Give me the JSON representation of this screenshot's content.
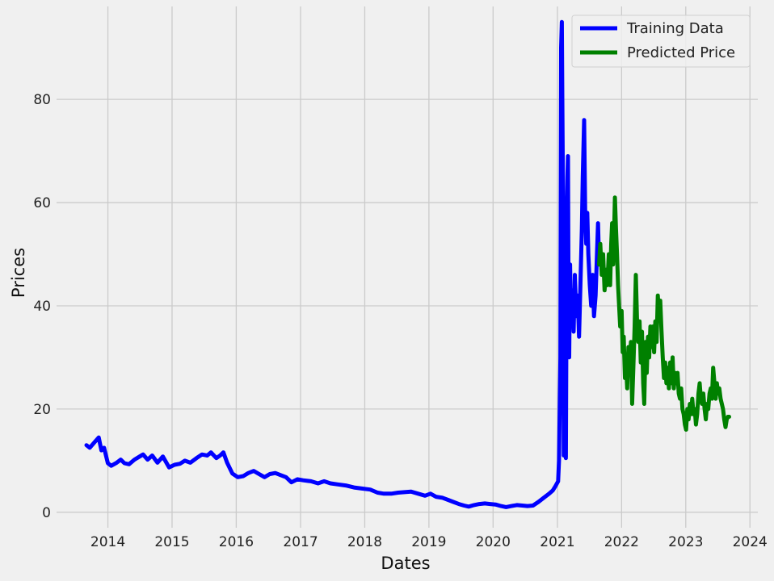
{
  "chart_data": {
    "type": "line",
    "title": "",
    "xlabel": "Dates",
    "ylabel": "Prices",
    "xlim": [
      "2013-03-15",
      "2024-02-15"
    ],
    "ylim": [
      -3,
      98
    ],
    "grid": true,
    "legend_position": "top-right",
    "x_ticks": [
      "2014",
      "2015",
      "2016",
      "2017",
      "2018",
      "2019",
      "2020",
      "2021",
      "2022",
      "2023",
      "2024"
    ],
    "y_ticks": [
      "0",
      "20",
      "40",
      "60",
      "80"
    ],
    "colors": {
      "background": "#f0f0f0",
      "grid": "#cbcbcb",
      "training": "#0000ff",
      "predicted": "#008000"
    },
    "series": [
      {
        "name": "Training Data",
        "color": "#0000ff",
        "points": [
          [
            "2013-09-01",
            13.0
          ],
          [
            "2013-09-20",
            12.5
          ],
          [
            "2013-10-15",
            13.5
          ],
          [
            "2013-11-10",
            14.5
          ],
          [
            "2013-11-25",
            12.0
          ],
          [
            "2013-12-10",
            12.5
          ],
          [
            "2014-01-01",
            9.5
          ],
          [
            "2014-01-20",
            9.0
          ],
          [
            "2014-02-20",
            9.6
          ],
          [
            "2014-03-15",
            10.2
          ],
          [
            "2014-04-05",
            9.5
          ],
          [
            "2014-05-01",
            9.3
          ],
          [
            "2014-06-01",
            10.2
          ],
          [
            "2014-07-01",
            10.8
          ],
          [
            "2014-07-20",
            11.2
          ],
          [
            "2014-08-15",
            10.2
          ],
          [
            "2014-09-10",
            11.0
          ],
          [
            "2014-10-10",
            9.6
          ],
          [
            "2014-11-10",
            10.8
          ],
          [
            "2014-12-15",
            8.7
          ],
          [
            "2015-01-15",
            9.2
          ],
          [
            "2015-02-15",
            9.4
          ],
          [
            "2015-03-15",
            10.0
          ],
          [
            "2015-04-15",
            9.6
          ],
          [
            "2015-05-20",
            10.5
          ],
          [
            "2015-06-20",
            11.2
          ],
          [
            "2015-07-20",
            11.0
          ],
          [
            "2015-08-10",
            11.6
          ],
          [
            "2015-09-10",
            10.5
          ],
          [
            "2015-10-01",
            11.0
          ],
          [
            "2015-10-20",
            11.6
          ],
          [
            "2015-11-10",
            9.6
          ],
          [
            "2015-12-10",
            7.5
          ],
          [
            "2016-01-10",
            6.8
          ],
          [
            "2016-02-10",
            7.0
          ],
          [
            "2016-03-10",
            7.6
          ],
          [
            "2016-04-10",
            8.0
          ],
          [
            "2016-05-10",
            7.4
          ],
          [
            "2016-06-10",
            6.8
          ],
          [
            "2016-07-10",
            7.4
          ],
          [
            "2016-08-10",
            7.6
          ],
          [
            "2016-09-10",
            7.2
          ],
          [
            "2016-10-10",
            6.8
          ],
          [
            "2016-11-10",
            5.8
          ],
          [
            "2016-12-15",
            6.4
          ],
          [
            "2017-01-15",
            6.2
          ],
          [
            "2017-03-01",
            6.0
          ],
          [
            "2017-04-10",
            5.6
          ],
          [
            "2017-05-15",
            6.0
          ],
          [
            "2017-06-20",
            5.6
          ],
          [
            "2017-08-01",
            5.4
          ],
          [
            "2017-09-15",
            5.2
          ],
          [
            "2017-11-01",
            4.8
          ],
          [
            "2017-12-15",
            4.6
          ],
          [
            "2018-02-01",
            4.4
          ],
          [
            "2018-03-15",
            3.8
          ],
          [
            "2018-04-20",
            3.6
          ],
          [
            "2018-06-01",
            3.6
          ],
          [
            "2018-07-10",
            3.8
          ],
          [
            "2018-08-15",
            3.9
          ],
          [
            "2018-09-20",
            4.0
          ],
          [
            "2018-11-01",
            3.6
          ],
          [
            "2018-12-10",
            3.2
          ],
          [
            "2019-01-10",
            3.6
          ],
          [
            "2019-02-10",
            3.0
          ],
          [
            "2019-03-20",
            2.8
          ],
          [
            "2019-04-20",
            2.4
          ],
          [
            "2019-05-20",
            2.0
          ],
          [
            "2019-06-20",
            1.6
          ],
          [
            "2019-07-20",
            1.3
          ],
          [
            "2019-08-15",
            1.1
          ],
          [
            "2019-09-15",
            1.4
          ],
          [
            "2019-10-15",
            1.6
          ],
          [
            "2019-11-15",
            1.7
          ],
          [
            "2019-12-15",
            1.6
          ],
          [
            "2020-01-15",
            1.5
          ],
          [
            "2020-02-15",
            1.2
          ],
          [
            "2020-03-15",
            1.0
          ],
          [
            "2020-04-15",
            1.2
          ],
          [
            "2020-05-15",
            1.4
          ],
          [
            "2020-06-15",
            1.3
          ],
          [
            "2020-07-15",
            1.2
          ],
          [
            "2020-08-15",
            1.3
          ],
          [
            "2020-09-15",
            2.0
          ],
          [
            "2020-10-15",
            2.8
          ],
          [
            "2020-11-15",
            3.6
          ],
          [
            "2020-12-05",
            4.2
          ],
          [
            "2020-12-20",
            5.0
          ],
          [
            "2021-01-05",
            6.0
          ],
          [
            "2021-01-10",
            10.0
          ],
          [
            "2021-01-18",
            30.0
          ],
          [
            "2021-01-22",
            90.0
          ],
          [
            "2021-01-26",
            95.0
          ],
          [
            "2021-01-29",
            80.0
          ],
          [
            "2021-02-03",
            55.0
          ],
          [
            "2021-02-06",
            11.0
          ],
          [
            "2021-02-12",
            42.0
          ],
          [
            "2021-02-18",
            10.5
          ],
          [
            "2021-02-24",
            60.0
          ],
          [
            "2021-02-27",
            65.0
          ],
          [
            "2021-03-02",
            69.0
          ],
          [
            "2021-03-05",
            45.0
          ],
          [
            "2021-03-09",
            30.0
          ],
          [
            "2021-03-14",
            48.0
          ],
          [
            "2021-03-19",
            36.0
          ],
          [
            "2021-03-26",
            43.0
          ],
          [
            "2021-04-03",
            35.0
          ],
          [
            "2021-04-10",
            46.0
          ],
          [
            "2021-04-18",
            38.0
          ],
          [
            "2021-04-26",
            42.0
          ],
          [
            "2021-05-04",
            34.0
          ],
          [
            "2021-05-12",
            44.0
          ],
          [
            "2021-05-20",
            55.0
          ],
          [
            "2021-05-25",
            65.0
          ],
          [
            "2021-06-02",
            76.0
          ],
          [
            "2021-06-08",
            58.0
          ],
          [
            "2021-06-14",
            52.0
          ],
          [
            "2021-06-20",
            58.0
          ],
          [
            "2021-06-26",
            50.0
          ],
          [
            "2021-07-04",
            44.0
          ],
          [
            "2021-07-12",
            40.0
          ],
          [
            "2021-07-20",
            46.0
          ],
          [
            "2021-07-28",
            38.0
          ],
          [
            "2021-08-06",
            42.0
          ],
          [
            "2021-08-14",
            50.0
          ],
          [
            "2021-08-20",
            56.0
          ],
          [
            "2021-08-26",
            48.0
          ]
        ]
      },
      {
        "name": "Predicted Price",
        "color": "#008000",
        "points": [
          [
            "2021-08-26",
            48.0
          ],
          [
            "2021-09-02",
            52.0
          ],
          [
            "2021-09-10",
            46.0
          ],
          [
            "2021-09-18",
            50.0
          ],
          [
            "2021-09-26",
            43.0
          ],
          [
            "2021-10-04",
            47.0
          ],
          [
            "2021-10-12",
            44.0
          ],
          [
            "2021-10-20",
            50.0
          ],
          [
            "2021-10-28",
            44.0
          ],
          [
            "2021-11-03",
            52.0
          ],
          [
            "2021-11-08",
            56.0
          ],
          [
            "2021-11-14",
            48.0
          ],
          [
            "2021-11-20",
            55.0
          ],
          [
            "2021-11-24",
            61.0
          ],
          [
            "2021-11-30",
            55.0
          ],
          [
            "2021-12-06",
            50.0
          ],
          [
            "2021-12-12",
            44.0
          ],
          [
            "2021-12-18",
            40.0
          ],
          [
            "2021-12-24",
            36.0
          ],
          [
            "2022-01-01",
            39.0
          ],
          [
            "2022-01-07",
            31.0
          ],
          [
            "2022-01-13",
            34.0
          ],
          [
            "2022-01-20",
            26.0
          ],
          [
            "2022-01-26",
            29.0
          ],
          [
            "2022-02-02",
            24.0
          ],
          [
            "2022-02-09",
            32.0
          ],
          [
            "2022-02-16",
            28.0
          ],
          [
            "2022-02-23",
            33.0
          ],
          [
            "2022-03-02",
            21.0
          ],
          [
            "2022-03-09",
            28.0
          ],
          [
            "2022-03-16",
            36.0
          ],
          [
            "2022-03-23",
            46.0
          ],
          [
            "2022-03-30",
            37.0
          ],
          [
            "2022-04-06",
            33.0
          ],
          [
            "2022-04-13",
            37.0
          ],
          [
            "2022-04-20",
            29.0
          ],
          [
            "2022-04-27",
            35.0
          ],
          [
            "2022-05-04",
            25.0
          ],
          [
            "2022-05-10",
            21.0
          ],
          [
            "2022-05-17",
            33.0
          ],
          [
            "2022-05-24",
            27.0
          ],
          [
            "2022-05-31",
            34.0
          ],
          [
            "2022-06-07",
            30.0
          ],
          [
            "2022-06-14",
            36.0
          ],
          [
            "2022-06-21",
            32.0
          ],
          [
            "2022-06-28",
            36.0
          ],
          [
            "2022-07-05",
            31.0
          ],
          [
            "2022-07-12",
            37.0
          ],
          [
            "2022-07-19",
            33.0
          ],
          [
            "2022-07-26",
            42.0
          ],
          [
            "2022-08-02",
            38.0
          ],
          [
            "2022-08-09",
            41.0
          ],
          [
            "2022-08-16",
            35.0
          ],
          [
            "2022-08-23",
            30.0
          ],
          [
            "2022-08-30",
            26.0
          ],
          [
            "2022-09-06",
            29.0
          ],
          [
            "2022-09-13",
            25.0
          ],
          [
            "2022-09-20",
            28.0
          ],
          [
            "2022-09-27",
            24.0
          ],
          [
            "2022-10-04",
            29.0
          ],
          [
            "2022-10-11",
            25.0
          ],
          [
            "2022-10-18",
            30.0
          ],
          [
            "2022-10-25",
            24.0
          ],
          [
            "2022-11-01",
            27.0
          ],
          [
            "2022-11-08",
            25.0
          ],
          [
            "2022-11-15",
            27.0
          ],
          [
            "2022-11-22",
            23.0
          ],
          [
            "2022-11-29",
            22.0
          ],
          [
            "2022-12-06",
            24.0
          ],
          [
            "2022-12-13",
            20.0
          ],
          [
            "2022-12-20",
            19.0
          ],
          [
            "2022-12-27",
            17.0
          ],
          [
            "2023-01-03",
            16.0
          ],
          [
            "2023-01-10",
            20.0
          ],
          [
            "2023-01-17",
            18.0
          ],
          [
            "2023-01-24",
            21.0
          ],
          [
            "2023-01-31",
            19.0
          ],
          [
            "2023-02-07",
            22.0
          ],
          [
            "2023-02-14",
            19.0
          ],
          [
            "2023-02-21",
            20.0
          ],
          [
            "2023-02-28",
            17.0
          ],
          [
            "2023-03-07",
            19.0
          ],
          [
            "2023-03-14",
            23.0
          ],
          [
            "2023-03-21",
            25.0
          ],
          [
            "2023-03-28",
            22.0
          ],
          [
            "2023-04-04",
            21.0
          ],
          [
            "2023-04-11",
            23.0
          ],
          [
            "2023-04-18",
            20.0
          ],
          [
            "2023-04-25",
            18.0
          ],
          [
            "2023-05-02",
            21.0
          ],
          [
            "2023-05-09",
            20.0
          ],
          [
            "2023-05-16",
            23.0
          ],
          [
            "2023-05-23",
            24.0
          ],
          [
            "2023-05-30",
            22.0
          ],
          [
            "2023-06-06",
            28.0
          ],
          [
            "2023-06-13",
            25.0
          ],
          [
            "2023-06-20",
            22.0
          ],
          [
            "2023-06-27",
            25.0
          ],
          [
            "2023-07-04",
            23.0
          ],
          [
            "2023-07-11",
            24.0
          ],
          [
            "2023-07-18",
            22.0
          ],
          [
            "2023-07-25",
            21.0
          ],
          [
            "2023-08-01",
            20.0
          ],
          [
            "2023-08-08",
            18.0
          ],
          [
            "2023-08-15",
            16.5
          ],
          [
            "2023-08-22",
            18.0
          ],
          [
            "2023-08-29",
            18.5
          ],
          [
            "2023-09-05",
            18.5
          ]
        ]
      }
    ]
  }
}
